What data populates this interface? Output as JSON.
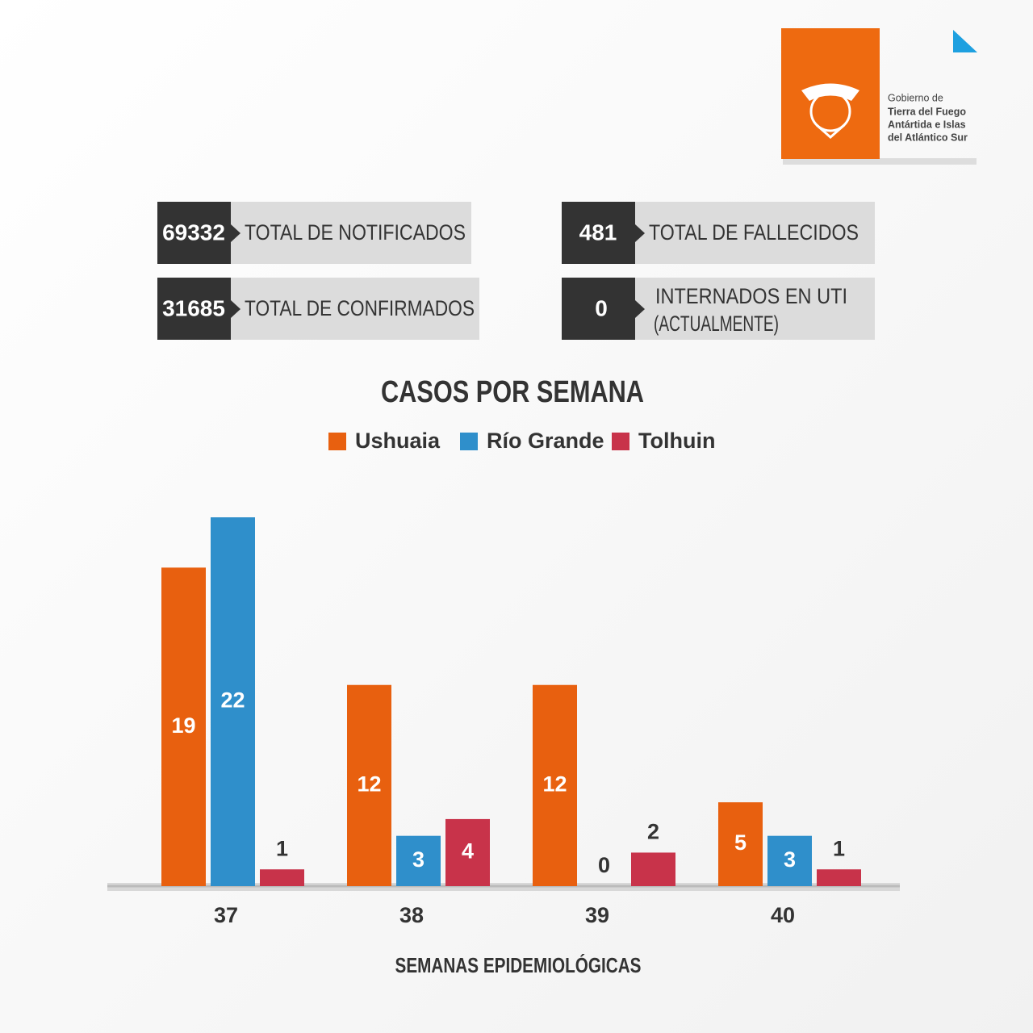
{
  "logo": {
    "lines": [
      "Gobierno de",
      "Tierra del Fuego",
      "Antártida e Islas",
      "del Atlántico Sur"
    ]
  },
  "stats": [
    {
      "value": 69332,
      "label": "TOTAL DE NOTIFICADOS"
    },
    {
      "value": 31685,
      "label": "TOTAL DE CONFIRMADOS"
    },
    {
      "value": 481,
      "label": "TOTAL DE FALLECIDOS"
    },
    {
      "value": 0,
      "label": "INTERNADOS EN UTI",
      "note": "(ACTUALMENTE)"
    }
  ],
  "chart_data": {
    "type": "bar",
    "title": "CASOS POR SEMANA",
    "x_label": "SEMANAS EPIDEMIOLÓGICAS",
    "categories": [
      "37",
      "38",
      "39",
      "40"
    ],
    "series": [
      {
        "name": "Ushuaia",
        "color": "#e8600f",
        "values": [
          19,
          12,
          12,
          5
        ]
      },
      {
        "name": "Río Grande",
        "color": "#2f8fcb",
        "values": [
          22,
          3,
          0,
          3
        ]
      },
      {
        "name": "Tolhuin",
        "color": "#c8334a",
        "values": [
          1,
          4,
          2,
          1
        ]
      }
    ]
  }
}
